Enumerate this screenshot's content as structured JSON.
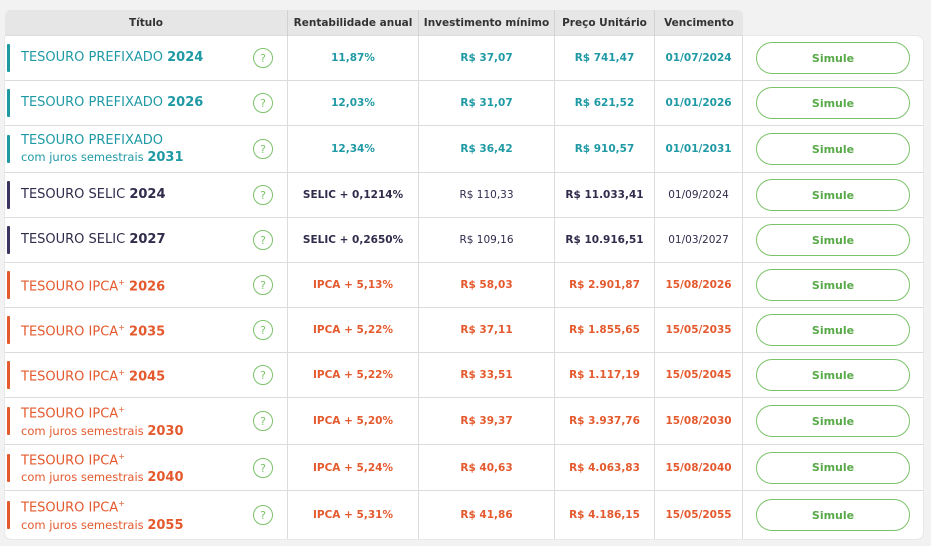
{
  "header": {
    "titulo": "Título",
    "rentabilidade": "Rentabilidade anual",
    "investimento": "Investimento mínimo",
    "preco": "Preço Unitário",
    "vencimento": "Vencimento"
  },
  "colors": {
    "prefixado": "#1f9aa5",
    "selic": "#2f2c4c",
    "ipca": "#e45a2e",
    "button": "#7cc26b"
  },
  "button_label": "Simule",
  "help_icon": "?",
  "rows": [
    {
      "group": "teal",
      "name": "TESOURO PREFIXADO",
      "sup": "",
      "sub": "",
      "year": "2024",
      "rent": "11,87%",
      "inv": "R$ 37,07",
      "preco": "R$ 741,47",
      "venc": "01/07/2024"
    },
    {
      "group": "teal",
      "name": "TESOURO PREFIXADO",
      "sup": "",
      "sub": "",
      "year": "2026",
      "rent": "12,03%",
      "inv": "R$ 31,07",
      "preco": "R$ 621,52",
      "venc": "01/01/2026"
    },
    {
      "group": "teal",
      "name": "TESOURO PREFIXADO",
      "sup": "",
      "sub": "com juros semestrais",
      "year": "2031",
      "rent": "12,34%",
      "inv": "R$ 36,42",
      "preco": "R$ 910,57",
      "venc": "01/01/2031"
    },
    {
      "group": "navy",
      "name": "TESOURO SELIC",
      "sup": "",
      "sub": "",
      "year": "2024",
      "rent": "SELIC + 0,1214%",
      "inv": "R$ 110,33",
      "preco": "R$ 11.033,41",
      "venc": "01/09/2024"
    },
    {
      "group": "navy",
      "name": "TESOURO SELIC",
      "sup": "",
      "sub": "",
      "year": "2027",
      "rent": "SELIC + 0,2650%",
      "inv": "R$ 109,16",
      "preco": "R$ 10.916,51",
      "venc": "01/03/2027"
    },
    {
      "group": "orange",
      "name": "TESOURO IPCA",
      "sup": "+",
      "sub": "",
      "year": "2026",
      "rent": "IPCA + 5,13%",
      "inv": "R$ 58,03",
      "preco": "R$ 2.901,87",
      "venc": "15/08/2026"
    },
    {
      "group": "orange",
      "name": "TESOURO IPCA",
      "sup": "+",
      "sub": "",
      "year": "2035",
      "rent": "IPCA + 5,22%",
      "inv": "R$ 37,11",
      "preco": "R$ 1.855,65",
      "venc": "15/05/2035"
    },
    {
      "group": "orange",
      "name": "TESOURO IPCA",
      "sup": "+",
      "sub": "",
      "year": "2045",
      "rent": "IPCA + 5,22%",
      "inv": "R$ 33,51",
      "preco": "R$ 1.117,19",
      "venc": "15/05/2045"
    },
    {
      "group": "orange",
      "name": "TESOURO IPCA",
      "sup": "+",
      "sub": "com juros semestrais",
      "year": "2030",
      "rent": "IPCA + 5,20%",
      "inv": "R$ 39,37",
      "preco": "R$ 3.937,76",
      "venc": "15/08/2030"
    },
    {
      "group": "orange",
      "name": "TESOURO IPCA",
      "sup": "+",
      "sub": "com juros semestrais",
      "year": "2040",
      "rent": "IPCA + 5,24%",
      "inv": "R$ 40,63",
      "preco": "R$ 4.063,83",
      "venc": "15/08/2040"
    },
    {
      "group": "orange",
      "name": "TESOURO IPCA",
      "sup": "+",
      "sub": "com juros semestrais",
      "year": "2055",
      "rent": "IPCA + 5,31%",
      "inv": "R$ 41,86",
      "preco": "R$ 4.186,15",
      "venc": "15/05/2055"
    }
  ]
}
